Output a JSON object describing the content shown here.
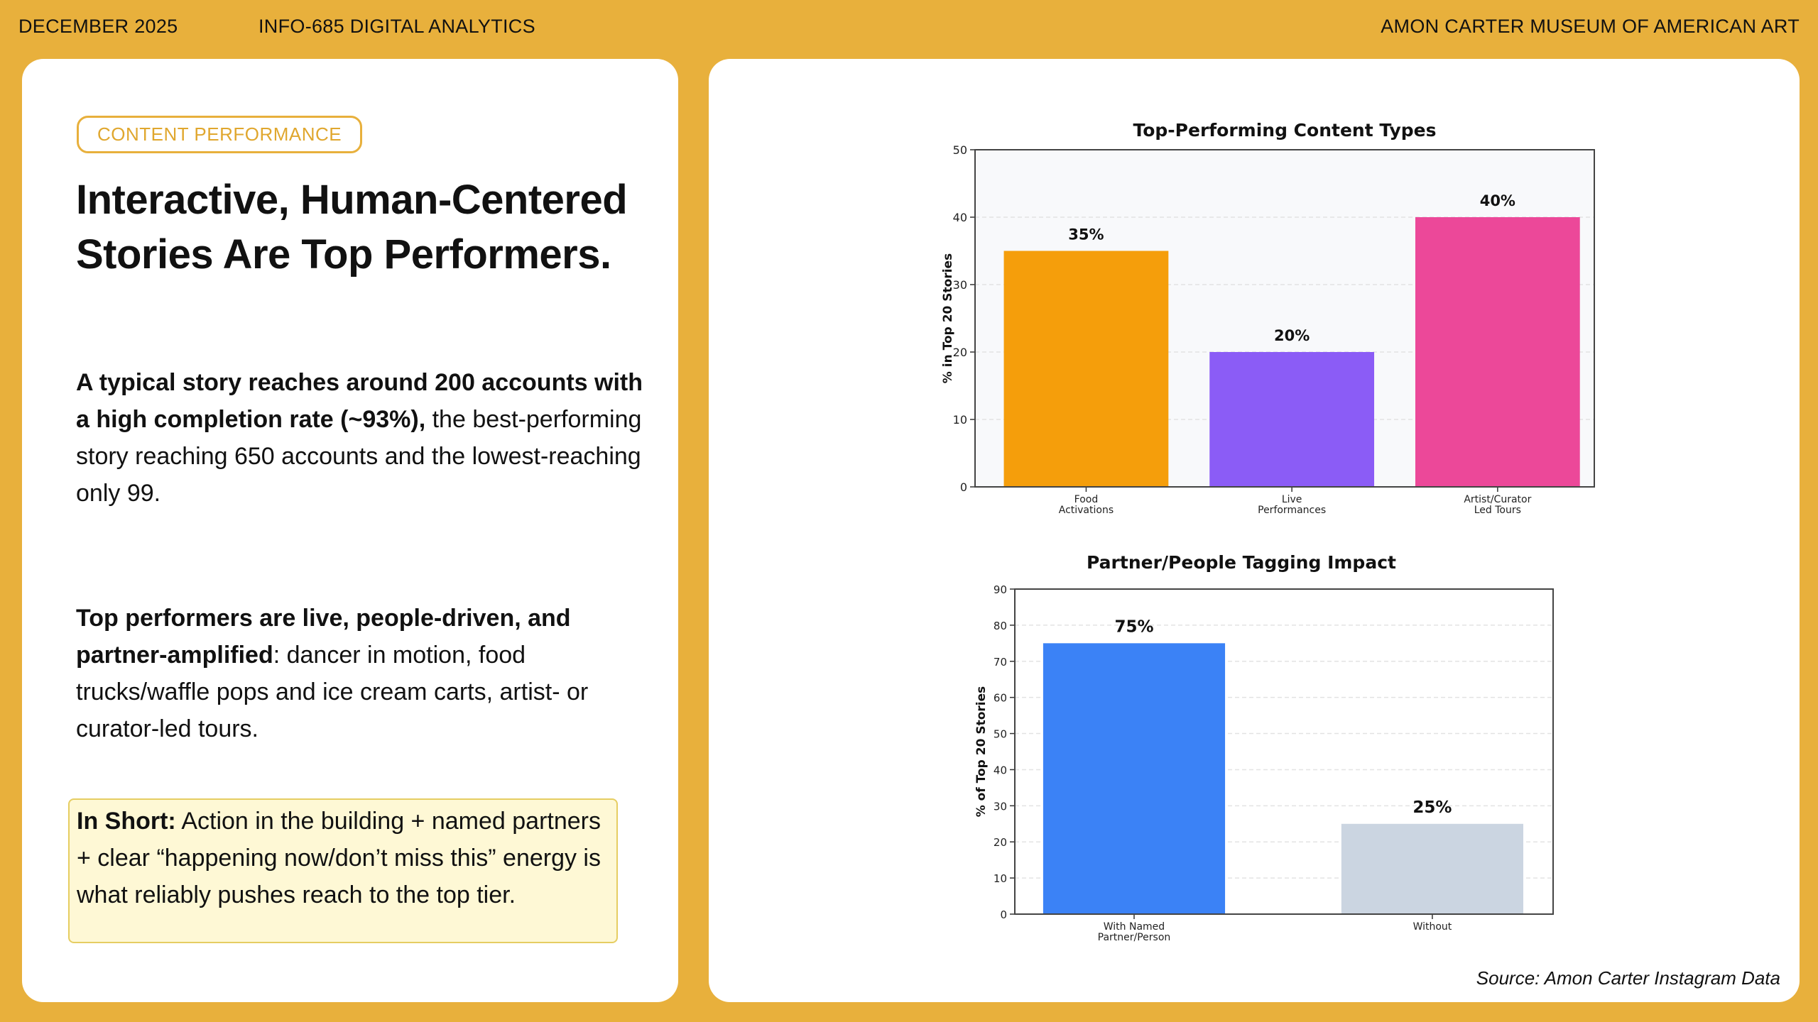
{
  "header": {
    "date": "DECEMBER 2025",
    "course": "INFO-685 DIGITAL ANALYTICS",
    "org": "AMON CARTER MUSEUM OF AMERICAN ART"
  },
  "left": {
    "badge": "CONTENT PERFORMANCE",
    "title": "Interactive, Human-Centered Stories Are Top Performers.",
    "p1_bold": "A typical story reaches around 200 accounts with a high completion rate (~93%),",
    "p1_rest": " the best-performing story reaching 650 accounts and the lowest-reaching only 99.",
    "p2_bold": "Top performers are live, people-driven, and partner-amplified",
    "p2_rest": ": dancer in motion, food trucks/waffle pops and ice cream carts, artist- or curator-led tours.",
    "callout_bold": "In Short:",
    "callout_rest": " Action in the building + named partners + clear “happening now/don’t miss this” energy is what reliably pushes reach to the top tier."
  },
  "right": {
    "source": "Source: Amon Carter Instagram Data"
  },
  "colors": {
    "background": "#e8b03c",
    "accent": "#e8b03c",
    "callout_bg": "#fef8d5"
  },
  "chart_data": [
    {
      "type": "bar",
      "title": "Top-Performing Content Types",
      "ylabel": "% in Top 20 Stories",
      "xlabel": "",
      "categories": [
        "Food\nActivations",
        "Live\nPerformances",
        "Artist/Curator\nLed Tours"
      ],
      "values": [
        35,
        20,
        40
      ],
      "data_labels": [
        "35%",
        "20%",
        "40%"
      ],
      "colors": [
        "#f59e0b",
        "#8b5cf6",
        "#ec4899"
      ],
      "ylim": [
        0,
        50
      ],
      "yticks": [
        0,
        10,
        20,
        30,
        40,
        50
      ],
      "grid": "y dashed",
      "plot_bg": "#f8f9fb"
    },
    {
      "type": "bar",
      "title": "Partner/People Tagging Impact",
      "ylabel": "% of Top 20 Stories",
      "xlabel": "",
      "categories": [
        "With Named\nPartner/Person",
        "Without"
      ],
      "values": [
        75,
        25
      ],
      "data_labels": [
        "75%",
        "25%"
      ],
      "colors": [
        "#3b82f6",
        "#cbd5e1"
      ],
      "ylim": [
        0,
        90
      ],
      "yticks": [
        0,
        10,
        20,
        30,
        40,
        50,
        60,
        70,
        80,
        90
      ],
      "grid": "y dashed",
      "plot_bg": "#ffffff"
    }
  ]
}
